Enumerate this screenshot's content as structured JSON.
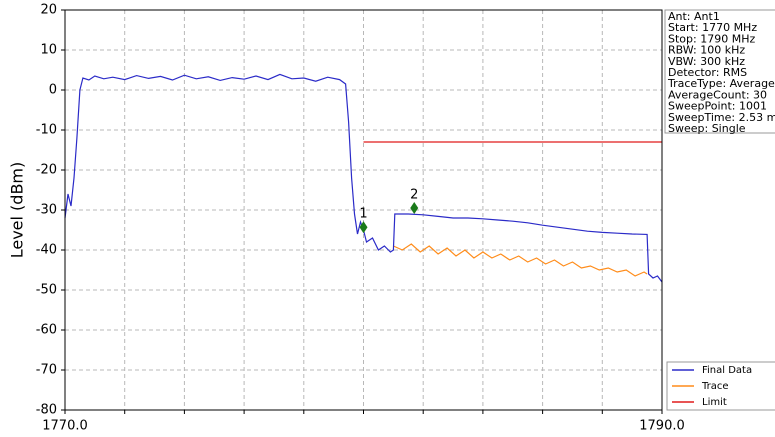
{
  "chart_data": {
    "type": "line",
    "ylabel": "Level (dBm)",
    "xlim": [
      1770,
      1790
    ],
    "xticks": [
      {
        "value": 1770,
        "label": "1770.0"
      },
      {
        "value": 1790,
        "label": "1790.0"
      }
    ],
    "x_minor_ticks": [
      1772,
      1774,
      1776,
      1778,
      1780,
      1782,
      1784,
      1786,
      1788
    ],
    "ylim": [
      -80,
      20
    ],
    "yticks": [
      -80,
      -70,
      -60,
      -50,
      -40,
      -30,
      -20,
      -10,
      0,
      10,
      20
    ],
    "grid": true,
    "legend": "lower right",
    "series": [
      {
        "name": "Final Data",
        "color": "#2b2bc8",
        "x": [
          1770.0,
          1770.1,
          1770.2,
          1770.3,
          1770.4,
          1770.5,
          1770.6,
          1770.8,
          1771.0,
          1771.3,
          1771.6,
          1772.0,
          1772.4,
          1772.8,
          1773.2,
          1773.6,
          1774.0,
          1774.4,
          1774.8,
          1775.2,
          1775.6,
          1776.0,
          1776.4,
          1776.8,
          1777.2,
          1777.6,
          1778.0,
          1778.4,
          1778.8,
          1779.2,
          1779.4,
          1779.5,
          1779.6,
          1779.7,
          1779.8,
          1779.9,
          1780.0,
          1780.1,
          1780.3,
          1780.5,
          1780.7,
          1780.9,
          1781.0,
          1781.05,
          1781.5,
          1782.0,
          1782.5,
          1783.0,
          1783.5,
          1784.0,
          1784.5,
          1785.0,
          1785.5,
          1786.0,
          1786.5,
          1787.0,
          1787.5,
          1788.0,
          1788.5,
          1789.0,
          1789.5,
          1789.55,
          1789.7,
          1789.85,
          1790.0
        ],
        "values": [
          -32,
          -26,
          -29,
          -22,
          -12,
          0,
          3,
          2.5,
          3.5,
          2.8,
          3.2,
          2.6,
          3.6,
          2.9,
          3.4,
          2.5,
          3.7,
          2.8,
          3.3,
          2.4,
          3.1,
          2.7,
          3.5,
          2.6,
          3.9,
          2.8,
          3.0,
          2.2,
          3.2,
          2.6,
          1.5,
          -8,
          -22,
          -31,
          -36,
          -33,
          -35,
          -38,
          -37,
          -40,
          -39,
          -40.5,
          -40,
          -31,
          -31,
          -31.2,
          -31.6,
          -32,
          -32,
          -32.2,
          -32.5,
          -32.8,
          -33.2,
          -33.8,
          -34.3,
          -34.8,
          -35.3,
          -35.6,
          -35.8,
          -36,
          -36.1,
          -46,
          -47,
          -46.5,
          -48
        ]
      },
      {
        "name": "Trace",
        "color": "#ff8c1a",
        "x": [
          1781.0,
          1781.3,
          1781.6,
          1781.9,
          1782.2,
          1782.5,
          1782.8,
          1783.1,
          1783.4,
          1783.7,
          1784.0,
          1784.3,
          1784.6,
          1784.9,
          1785.2,
          1785.5,
          1785.8,
          1786.1,
          1786.4,
          1786.7,
          1787.0,
          1787.3,
          1787.6,
          1787.9,
          1788.2,
          1788.5,
          1788.8,
          1789.1,
          1789.4,
          1789.5
        ],
        "values": [
          -39,
          -40,
          -38.5,
          -40.5,
          -39,
          -41,
          -39.5,
          -41.5,
          -40,
          -42,
          -40.5,
          -42,
          -41,
          -42.5,
          -41.5,
          -43,
          -42,
          -43.5,
          -42.5,
          -44,
          -43,
          -44.5,
          -44,
          -45,
          -44.5,
          -45.5,
          -45,
          -46.5,
          -45.5,
          -46
        ]
      },
      {
        "name": "Limit",
        "color": "#e01b1b",
        "x": [
          1780,
          1790
        ],
        "values": [
          -13,
          -13
        ]
      }
    ],
    "markers": [
      {
        "label": "1",
        "x": 1780.0,
        "value": -34.3,
        "color": "#1a7a1a"
      },
      {
        "label": "2",
        "x": 1781.7,
        "value": -29.5,
        "color": "#1a7a1a"
      }
    ],
    "info": [
      "Ant: Ant1",
      "Start: 1770 MHz",
      "Stop: 1790 MHz",
      "RBW: 100 kHz",
      "VBW: 300 kHz",
      "Detector: RMS",
      "TraceType: Average",
      "AverageCount: 30",
      "SweepPoint: 1001",
      "SweepTime: 2.53 m",
      "Sweep: Single"
    ]
  }
}
